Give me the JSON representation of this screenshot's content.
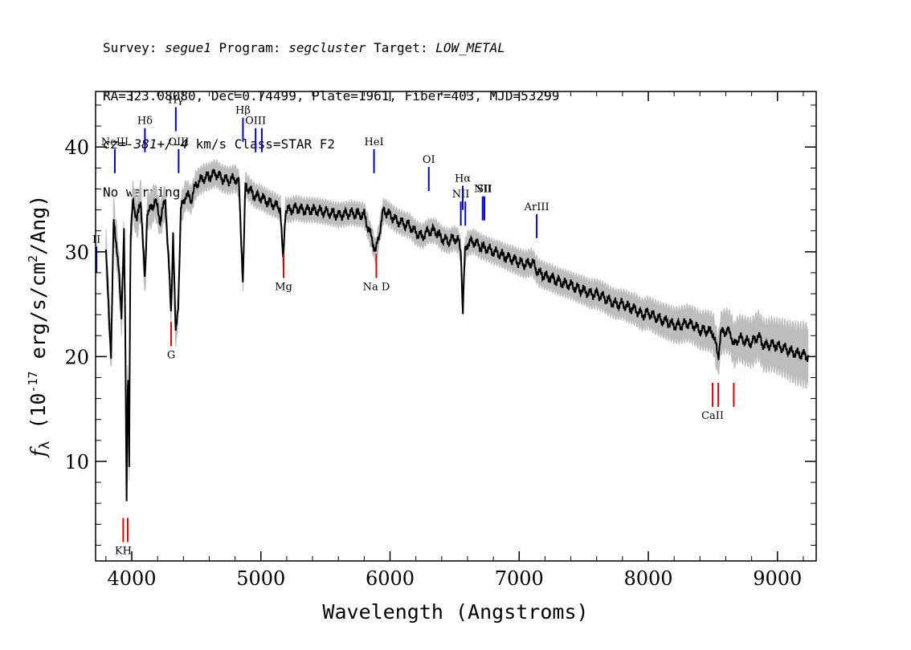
{
  "header": {
    "survey_label": "Survey: ",
    "survey": "segue1",
    "program_label": " Program: ",
    "program": "segcluster",
    "target_label": " Target: ",
    "target": "LOW_METAL",
    "line2": "RA=323.08080, Dec=0.74499, Plate=1961, Fiber=403, MJD=53299",
    "cz_label": "cz=",
    "cz_value": "-381+/-4",
    "cz_rest": " km/s Class=STAR F2",
    "line4": "No warnings."
  },
  "chart_data": {
    "type": "line",
    "xlabel": "Wavelength (Angstroms)",
    "ylabel_prefix": "f",
    "ylabel_sub": "λ",
    "ylabel_mid": " (10",
    "ylabel_exp": "-17",
    "ylabel_unit": " erg/s/cm",
    "ylabel_exp2": "2",
    "ylabel_end": "/Ang)",
    "xlim": [
      3720,
      9300
    ],
    "ylim": [
      0.5,
      45.3
    ],
    "xticks": [
      4000,
      5000,
      6000,
      7000,
      8000,
      9000
    ],
    "yticks": [
      10,
      20,
      30,
      40
    ],
    "series": [
      {
        "role": "flux",
        "color": "#000000",
        "x": [
          3800,
          3820,
          3840,
          3860,
          3880,
          3900,
          3920,
          3940,
          3950,
          3960,
          3970,
          3980,
          3990,
          4010,
          4040,
          4070,
          4102,
          4120,
          4150,
          4180,
          4220,
          4260,
          4290,
          4305,
          4320,
          4340,
          4360,
          4380,
          4420,
          4460,
          4500,
          4550,
          4600,
          4650,
          4700,
          4750,
          4800,
          4830,
          4861,
          4880,
          4920,
          4960,
          5000,
          5050,
          5100,
          5150,
          5172,
          5190,
          5230,
          5270,
          5330,
          5400,
          5500,
          5600,
          5700,
          5800,
          5890,
          5950,
          6000,
          6050,
          6100,
          6150,
          6200,
          6250,
          6300,
          6350,
          6400,
          6450,
          6500,
          6530,
          6550,
          6563,
          6580,
          6600,
          6650,
          6700,
          6750,
          6800,
          6850,
          6900,
          6950,
          7000,
          7050,
          7100,
          7150,
          7200,
          7250,
          7300,
          7350,
          7400,
          7450,
          7500,
          7550,
          7600,
          7650,
          7700,
          7750,
          7800,
          7850,
          7900,
          7950,
          8000,
          8050,
          8100,
          8150,
          8200,
          8250,
          8300,
          8350,
          8400,
          8450,
          8500,
          8542,
          8560,
          8600,
          8640,
          8662,
          8700,
          8750,
          8800,
          8850,
          8900,
          8950,
          9000,
          9050,
          9100,
          9150,
          9200,
          9240
        ],
        "y": [
          30,
          25,
          20,
          33,
          31,
          28,
          24,
          32,
          22,
          6,
          20,
          10,
          31,
          35,
          33,
          35,
          27,
          34,
          34,
          35,
          33,
          35,
          28,
          24,
          32,
          22,
          25,
          34,
          35.5,
          35,
          36.5,
          37,
          37.2,
          37.5,
          37,
          36.8,
          37,
          36.5,
          27,
          36.4,
          35.8,
          35.3,
          35.2,
          34.8,
          34.5,
          34.2,
          29,
          34,
          34,
          34.2,
          34,
          34,
          33.8,
          33.5,
          33.7,
          33.5,
          30,
          34,
          33.5,
          33,
          32.7,
          32.5,
          31.8,
          31.5,
          32,
          32,
          31.3,
          31,
          31.3,
          31,
          30,
          24,
          30,
          30.8,
          31,
          30.5,
          30.3,
          30,
          29.8,
          29.5,
          29.3,
          29,
          28.8,
          29,
          28,
          27.7,
          27.5,
          27.2,
          27,
          26.8,
          26.5,
          26.3,
          26,
          26,
          25.7,
          25.3,
          25,
          25,
          24.7,
          24.5,
          24,
          24.2,
          23.8,
          23.5,
          23.3,
          23,
          23,
          23.2,
          23,
          22.5,
          22.5,
          22.3,
          20,
          22.2,
          22.5,
          22.2,
          21,
          21.8,
          21.5,
          21.3,
          22,
          21,
          21.2,
          21,
          20.8,
          20.5,
          20.3,
          20.2,
          20
        ]
      },
      {
        "role": "noise-envelope",
        "color": "#bdbdbd",
        "x": [
          3800,
          3900,
          4000,
          4100,
          4200,
          4300,
          4400,
          4500,
          4600,
          4700,
          4800,
          4900,
          5000,
          5200,
          5400,
          5600,
          5800,
          6000,
          6200,
          6400,
          6600,
          6800,
          7000,
          7200,
          7400,
          7600,
          7800,
          8000,
          8200,
          8400,
          8600,
          8800,
          9000,
          9240
        ],
        "y": [
          1.6,
          1.6,
          1.5,
          1.4,
          1.3,
          1.2,
          1.1,
          1.0,
          1.0,
          1.0,
          1.0,
          0.9,
          0.9,
          0.9,
          0.9,
          0.9,
          0.9,
          0.9,
          0.9,
          0.9,
          0.9,
          0.9,
          1.0,
          1.0,
          1.0,
          1.1,
          1.1,
          1.2,
          1.3,
          1.4,
          1.6,
          1.8,
          2.0,
          2.4
        ]
      }
    ],
    "emission_lines": [
      {
        "label": "H",
        "sub": "",
        "greek": "",
        "wave": 3727,
        "label_text": "II",
        "color": "#0000cc",
        "y0": 28,
        "y1": 30.5
      },
      {
        "label": "NeIII",
        "wave": 3869,
        "color": "#0000cc",
        "y0": 37.5,
        "y1": 39.8
      },
      {
        "label": "Hδ",
        "wave": 4102,
        "color": "#0000cc",
        "y0": 39.5,
        "y1": 41.8
      },
      {
        "label": "Hγ",
        "wave": 4341,
        "color": "#0000cc",
        "y0": 41.5,
        "y1": 43.8
      },
      {
        "label": "OIII",
        "wave": 4363,
        "color": "#0000cc",
        "y0": 37.5,
        "y1": 39.8
      },
      {
        "label": "Hβ",
        "wave": 4861,
        "color": "#0000cc",
        "y0": 40.5,
        "y1": 42.8
      },
      {
        "label": "OIII",
        "wave": 4959,
        "color": "#0000cc",
        "y0": 39.5,
        "y1": 41.8
      },
      {
        "label": "",
        "wave": 5007,
        "color": "#0000cc",
        "y0": 39.5,
        "y1": 41.8
      },
      {
        "label": "HeI",
        "wave": 5876,
        "color": "#0000cc",
        "y0": 37.5,
        "y1": 39.8
      },
      {
        "label": "OI",
        "wave": 6300,
        "color": "#0000cc",
        "y0": 35.8,
        "y1": 38.1
      },
      {
        "label": "NII",
        "wave": 6548,
        "color": "#0000cc",
        "y0": 32.5,
        "y1": 34.8
      },
      {
        "label": "Hα",
        "wave": 6563,
        "color": "#0000cc",
        "y0": 34,
        "y1": 36.3
      },
      {
        "label": "",
        "wave": 6583,
        "color": "#0000cc",
        "y0": 32.5,
        "y1": 34.8
      },
      {
        "label": "NII",
        "wave": 6717,
        "color": "#0000cc",
        "y0": 33,
        "y1": 35.3
      },
      {
        "label": "SII",
        "wave": 6731,
        "color": "#0000cc",
        "y0": 33,
        "y1": 35.3
      },
      {
        "label": "ArIII",
        "wave": 7136,
        "color": "#0000cc",
        "y0": 31.3,
        "y1": 33.6
      }
    ],
    "absorption_lines": [
      {
        "label": "KH",
        "wave": 3934,
        "color": "#dd0000",
        "y0": 2.3,
        "y1": 4.6
      },
      {
        "label": "",
        "wave": 3969,
        "color": "#dd0000",
        "y0": 2.3,
        "y1": 4.6
      },
      {
        "label": "G",
        "wave": 4305,
        "color": "#dd0000",
        "y0": 21,
        "y1": 23.3
      },
      {
        "label": "Mg",
        "wave": 5176,
        "color": "#dd0000",
        "y0": 27.5,
        "y1": 29.8
      },
      {
        "label": "Na D",
        "wave": 5894,
        "color": "#dd0000",
        "y0": 27.5,
        "y1": 29.8
      },
      {
        "label": "CaII",
        "wave": 8498,
        "color": "#dd0000",
        "y0": 15.2,
        "y1": 17.5
      },
      {
        "label": "",
        "wave": 8542,
        "color": "#dd0000",
        "y0": 15.2,
        "y1": 17.5
      },
      {
        "label": "",
        "wave": 8662,
        "color": "#dd0000",
        "y0": 15.2,
        "y1": 17.5
      }
    ]
  }
}
